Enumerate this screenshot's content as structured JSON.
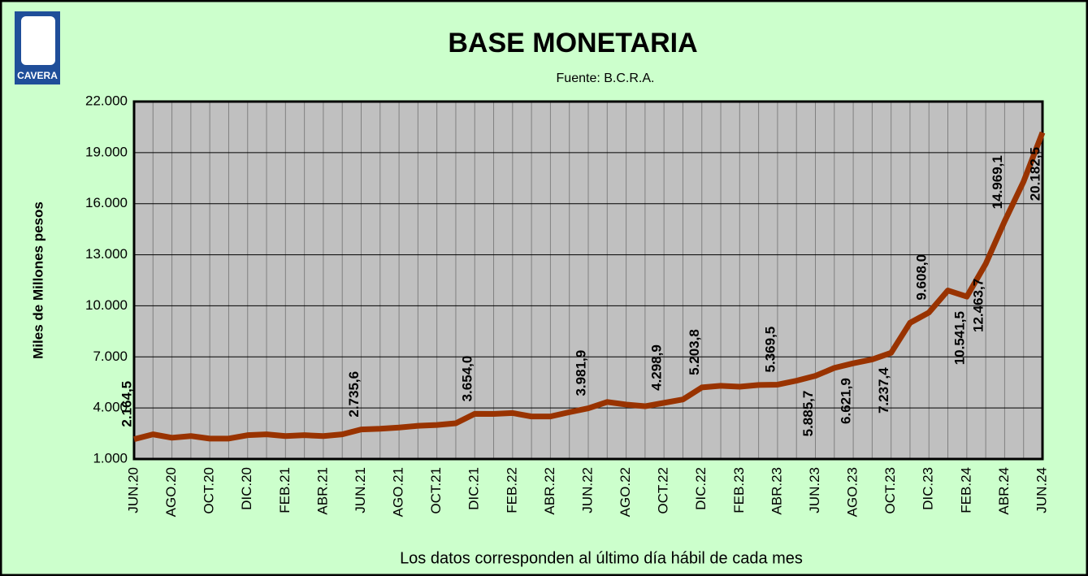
{
  "chart_data": {
    "type": "line",
    "title": "BASE MONETARIA",
    "subtitle": "Fuente: B.C.R.A.",
    "logo_text": "CAVERA",
    "y_label": "Miles de Millones  pesos",
    "x_label": "Los datos corresponden al último día hábil de cada mes",
    "categories": [
      "JUN.20",
      null,
      "AGO.20",
      null,
      "OCT.20",
      null,
      "DIC.20",
      null,
      "FEB.21",
      null,
      "ABR.21",
      null,
      "JUN.21",
      null,
      "AGO.21",
      null,
      "OCT.21",
      null,
      "DIC.21",
      null,
      "FEB.22",
      null,
      "ABR.22",
      null,
      "JUN.22",
      null,
      "AGO.22",
      null,
      "OCT.22",
      null,
      "DIC.22",
      null,
      "FEB.23",
      null,
      "ABR.23",
      null,
      "JUN.23",
      null,
      "AGO.23",
      null,
      "OCT.23",
      null,
      "DIC.23",
      null,
      "FEB.24",
      null,
      "ABR.24",
      null,
      "JUN.24"
    ],
    "values": [
      2164.5,
      2450,
      2250,
      2350,
      2200,
      2200,
      2400,
      2450,
      2350,
      2400,
      2350,
      2450,
      2735.6,
      2780,
      2850,
      2950,
      3000,
      3100,
      3654.0,
      3650,
      3700,
      3500,
      3500,
      3750,
      3981.9,
      4350,
      4200,
      4100,
      4298.9,
      4500,
      5203.8,
      5300,
      5250,
      5350,
      5369.5,
      5600,
      5885.7,
      6350,
      6621.9,
      6850,
      7237.4,
      9000,
      9608.0,
      10900,
      10541.5,
      12463.7,
      14969.1,
      17300,
      20182.5
    ],
    "value_labels": [
      "2.164,5",
      null,
      null,
      null,
      null,
      null,
      null,
      null,
      null,
      null,
      null,
      null,
      "2.735,6",
      null,
      null,
      null,
      null,
      null,
      "3.654,0",
      null,
      null,
      null,
      null,
      null,
      "3.981,9",
      null,
      null,
      null,
      "4.298,9",
      null,
      "5.203,8",
      null,
      null,
      null,
      "5.369,5",
      null,
      "5.885,7",
      null,
      "6.621,9",
      null,
      "7.237,4",
      null,
      "9.608,0",
      null,
      "10.541,5",
      "12.463,7",
      "14.969,1",
      null,
      "20.182,5"
    ],
    "color": "#993300",
    "ylim": [
      1000,
      22000
    ],
    "yticks": [
      {
        "value": 1000,
        "label": "1.000"
      },
      {
        "value": 4000,
        "label": "4.000"
      },
      {
        "value": 7000,
        "label": "7.000"
      },
      {
        "value": 10000,
        "label": "10.000"
      },
      {
        "value": 13000,
        "label": "13.000"
      },
      {
        "value": 16000,
        "label": "16.000"
      },
      {
        "value": 19000,
        "label": "19.000"
      },
      {
        "value": 22000,
        "label": "22.000"
      }
    ],
    "grid": true
  }
}
